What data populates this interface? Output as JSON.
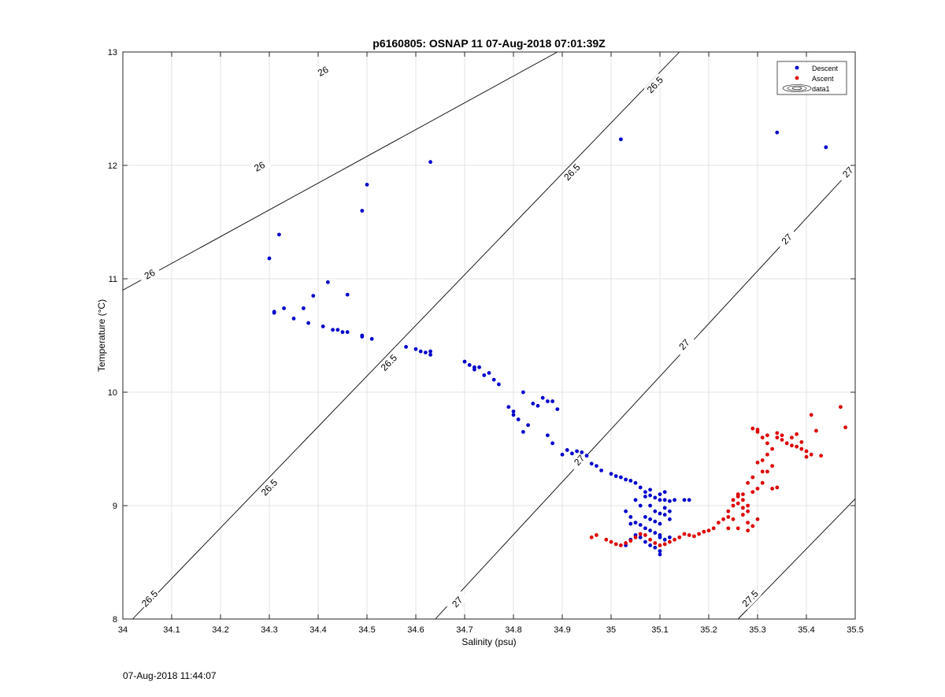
{
  "chart_data": {
    "type": "scatter",
    "title": "p6160805: OSNAP 11 07-Aug-2018 07:01:39Z",
    "xlabel": "Salinity (psu)",
    "ylabel": "Temperature (°C)",
    "xlim": [
      34,
      35.5
    ],
    "ylim": [
      8,
      13
    ],
    "xticks": [
      "34",
      "34.1",
      "34.2",
      "34.3",
      "34.4",
      "34.5",
      "34.6",
      "34.7",
      "34.8",
      "34.9",
      "35",
      "35.1",
      "35.2",
      "35.3",
      "35.4",
      "35.5"
    ],
    "yticks": [
      "8",
      "9",
      "10",
      "11",
      "12",
      "13"
    ],
    "grid": true,
    "legend_position": "top-right",
    "legend": [
      "Descent",
      "Ascent",
      "data1"
    ],
    "colors": {
      "descent": "#0000cc",
      "ascent": "#dd0000",
      "contour": "#000000",
      "grid": "#e3e3e3"
    },
    "contours": [
      {
        "level": "26",
        "lines": [
          [
            [
              34.0,
              10.9
            ],
            [
              34.89,
              13.0
            ]
          ]
        ],
        "labels": [
          [
            34.28,
            11.99
          ],
          [
            34.055,
            11.04
          ],
          [
            34.41,
            12.83
          ]
        ]
      },
      {
        "level": "26.5",
        "lines": [
          [
            [
              34.02,
              8.0
            ],
            [
              35.14,
              13.0
            ]
          ]
        ],
        "labels": [
          [
            34.055,
            8.18
          ],
          [
            34.3,
            9.16
          ],
          [
            34.545,
            10.26
          ],
          [
            34.92,
            11.94
          ],
          [
            35.09,
            12.71
          ]
        ]
      },
      {
        "level": "27",
        "lines": [
          [
            [
              34.64,
              8.0
            ],
            [
              35.5,
              12.0
            ]
          ]
        ],
        "labels": [
          [
            34.685,
            8.15
          ],
          [
            34.935,
            9.4
          ],
          [
            35.15,
            10.42
          ],
          [
            35.36,
            11.35
          ],
          [
            35.485,
            11.94
          ]
        ]
      },
      {
        "level": "27.5",
        "lines": [
          [
            [
              35.26,
              8.0
            ],
            [
              35.5,
              9.06
            ]
          ]
        ],
        "labels": [
          [
            35.285,
            8.18
          ]
        ]
      }
    ],
    "series": [
      {
        "name": "Descent",
        "points": [
          [
            34.3,
            11.18
          ],
          [
            34.32,
            11.39
          ],
          [
            34.49,
            11.6
          ],
          [
            34.5,
            11.83
          ],
          [
            34.63,
            12.03
          ],
          [
            35.02,
            12.23
          ],
          [
            35.34,
            12.29
          ],
          [
            35.44,
            12.16
          ],
          [
            34.31,
            10.71
          ],
          [
            34.31,
            10.7
          ],
          [
            34.33,
            10.74
          ],
          [
            34.35,
            10.65
          ],
          [
            34.37,
            10.74
          ],
          [
            34.38,
            10.61
          ],
          [
            34.39,
            10.85
          ],
          [
            34.41,
            10.58
          ],
          [
            34.42,
            10.97
          ],
          [
            34.43,
            10.55
          ],
          [
            34.44,
            10.55
          ],
          [
            34.45,
            10.53
          ],
          [
            34.46,
            10.53
          ],
          [
            34.46,
            10.86
          ],
          [
            34.49,
            10.5
          ],
          [
            34.49,
            10.49
          ],
          [
            34.51,
            10.47
          ],
          [
            34.58,
            10.4
          ],
          [
            34.6,
            10.38
          ],
          [
            34.61,
            10.36
          ],
          [
            34.62,
            10.35
          ],
          [
            34.63,
            10.33
          ],
          [
            34.63,
            10.36
          ],
          [
            34.7,
            10.27
          ],
          [
            34.71,
            10.24
          ],
          [
            34.72,
            10.22
          ],
          [
            34.72,
            10.2
          ],
          [
            34.73,
            10.22
          ],
          [
            34.74,
            10.15
          ],
          [
            34.75,
            10.17
          ],
          [
            34.76,
            10.11
          ],
          [
            34.77,
            10.07
          ],
          [
            34.79,
            9.87
          ],
          [
            34.8,
            9.8
          ],
          [
            34.8,
            9.83
          ],
          [
            34.81,
            9.76
          ],
          [
            34.82,
            9.65
          ],
          [
            34.82,
            10.0
          ],
          [
            34.83,
            9.71
          ],
          [
            34.84,
            9.9
          ],
          [
            34.85,
            9.88
          ],
          [
            34.86,
            9.95
          ],
          [
            34.87,
            9.92
          ],
          [
            34.87,
            9.62
          ],
          [
            34.88,
            9.55
          ],
          [
            34.88,
            9.92
          ],
          [
            34.89,
            9.85
          ],
          [
            34.9,
            9.45
          ],
          [
            34.91,
            9.49
          ],
          [
            34.92,
            9.46
          ],
          [
            34.93,
            9.48
          ],
          [
            34.94,
            9.47
          ],
          [
            34.95,
            9.44
          ],
          [
            34.96,
            9.37
          ],
          [
            34.97,
            9.35
          ],
          [
            34.98,
            9.31
          ],
          [
            35.0,
            9.28
          ],
          [
            35.01,
            9.26
          ],
          [
            35.02,
            9.25
          ],
          [
            35.03,
            9.23
          ],
          [
            35.04,
            9.22
          ],
          [
            35.05,
            9.2
          ],
          [
            35.06,
            9.16
          ],
          [
            35.07,
            9.12
          ],
          [
            35.08,
            9.09
          ],
          [
            35.09,
            9.07
          ],
          [
            35.1,
            9.05
          ],
          [
            35.11,
            9.05
          ],
          [
            35.12,
            9.04
          ],
          [
            35.13,
            9.05
          ],
          [
            35.15,
            9.05
          ],
          [
            35.16,
            9.05
          ],
          [
            35.08,
            9.0
          ],
          [
            35.09,
            8.95
          ],
          [
            35.1,
            8.93
          ],
          [
            35.11,
            8.92
          ],
          [
            35.12,
            8.95
          ],
          [
            35.03,
            8.95
          ],
          [
            35.04,
            8.9
          ],
          [
            35.05,
            8.85
          ],
          [
            35.06,
            8.83
          ],
          [
            35.07,
            8.8
          ],
          [
            35.08,
            8.78
          ],
          [
            35.09,
            8.76
          ],
          [
            35.1,
            8.74
          ],
          [
            35.1,
            8.72
          ],
          [
            35.11,
            8.7
          ],
          [
            35.12,
            8.72
          ],
          [
            35.06,
            8.72
          ],
          [
            35.07,
            8.68
          ],
          [
            35.08,
            8.65
          ],
          [
            35.09,
            8.63
          ],
          [
            35.1,
            8.6
          ],
          [
            35.1,
            8.57
          ],
          [
            35.05,
            8.74
          ],
          [
            35.04,
            8.7
          ],
          [
            35.03,
            8.65
          ],
          [
            35.08,
            8.88
          ],
          [
            35.09,
            8.86
          ],
          [
            35.1,
            8.84
          ],
          [
            35.07,
            8.9
          ],
          [
            35.06,
            9.0
          ],
          [
            35.05,
            9.05
          ],
          [
            35.04,
            8.84
          ],
          [
            35.11,
            8.98
          ],
          [
            35.12,
            8.88
          ],
          [
            35.1,
            9.1
          ],
          [
            35.11,
            9.12
          ],
          [
            35.08,
            9.14
          ],
          [
            35.07,
            9.08
          ]
        ]
      },
      {
        "name": "Ascent",
        "points": [
          [
            34.96,
            8.72
          ],
          [
            34.97,
            8.74
          ],
          [
            34.99,
            8.7
          ],
          [
            35.0,
            8.68
          ],
          [
            35.01,
            8.66
          ],
          [
            35.02,
            8.65
          ],
          [
            35.03,
            8.67
          ],
          [
            35.04,
            8.69
          ],
          [
            35.05,
            8.72
          ],
          [
            35.06,
            8.75
          ],
          [
            35.07,
            8.74
          ],
          [
            35.08,
            8.7
          ],
          [
            35.09,
            8.67
          ],
          [
            35.1,
            8.65
          ],
          [
            35.11,
            8.66
          ],
          [
            35.12,
            8.68
          ],
          [
            35.13,
            8.7
          ],
          [
            35.14,
            8.72
          ],
          [
            35.15,
            8.75
          ],
          [
            35.16,
            8.74
          ],
          [
            35.17,
            8.73
          ],
          [
            35.18,
            8.75
          ],
          [
            35.19,
            8.77
          ],
          [
            35.2,
            8.78
          ],
          [
            35.21,
            8.8
          ],
          [
            35.22,
            8.85
          ],
          [
            35.23,
            8.88
          ],
          [
            35.24,
            8.9
          ],
          [
            35.24,
            8.95
          ],
          [
            35.25,
            9.0
          ],
          [
            35.25,
            9.05
          ],
          [
            35.26,
            9.08
          ],
          [
            35.26,
            9.02
          ],
          [
            35.27,
            8.98
          ],
          [
            35.27,
            8.92
          ],
          [
            35.28,
            8.85
          ],
          [
            35.28,
            8.95
          ],
          [
            35.27,
            9.05
          ],
          [
            35.26,
            9.1
          ],
          [
            35.25,
            8.88
          ],
          [
            35.24,
            8.8
          ],
          [
            35.26,
            8.8
          ],
          [
            35.28,
            8.78
          ],
          [
            35.29,
            9.12
          ],
          [
            35.3,
            9.15
          ],
          [
            35.31,
            9.2
          ],
          [
            35.31,
            9.3
          ],
          [
            35.3,
            9.38
          ],
          [
            35.31,
            9.4
          ],
          [
            35.32,
            9.45
          ],
          [
            35.33,
            9.5
          ],
          [
            35.32,
            9.55
          ],
          [
            35.31,
            9.6
          ],
          [
            35.3,
            9.65
          ],
          [
            35.29,
            9.68
          ],
          [
            35.3,
            9.67
          ],
          [
            35.32,
            9.62
          ],
          [
            35.34,
            9.6
          ],
          [
            35.35,
            9.58
          ],
          [
            35.36,
            9.55
          ],
          [
            35.37,
            9.53
          ],
          [
            35.38,
            9.52
          ],
          [
            35.39,
            9.5
          ],
          [
            35.4,
            9.48
          ],
          [
            35.41,
            9.45
          ],
          [
            35.34,
            9.64
          ],
          [
            35.35,
            9.62
          ],
          [
            35.37,
            9.6
          ],
          [
            35.38,
            9.63
          ],
          [
            35.39,
            9.56
          ],
          [
            35.4,
            9.43
          ],
          [
            35.41,
            9.8
          ],
          [
            35.42,
            9.66
          ],
          [
            35.43,
            9.44
          ],
          [
            35.47,
            9.87
          ],
          [
            35.48,
            9.69
          ],
          [
            35.33,
            9.15
          ],
          [
            35.34,
            9.16
          ],
          [
            35.32,
            9.3
          ],
          [
            35.33,
            9.35
          ],
          [
            35.29,
            9.25
          ],
          [
            35.28,
            9.2
          ],
          [
            35.27,
            9.1
          ],
          [
            35.29,
            8.82
          ],
          [
            35.3,
            8.88
          ],
          [
            35.28,
            9.0
          ]
        ]
      }
    ]
  },
  "footer": {
    "timestamp": "07-Aug-2018 11:44:07"
  }
}
